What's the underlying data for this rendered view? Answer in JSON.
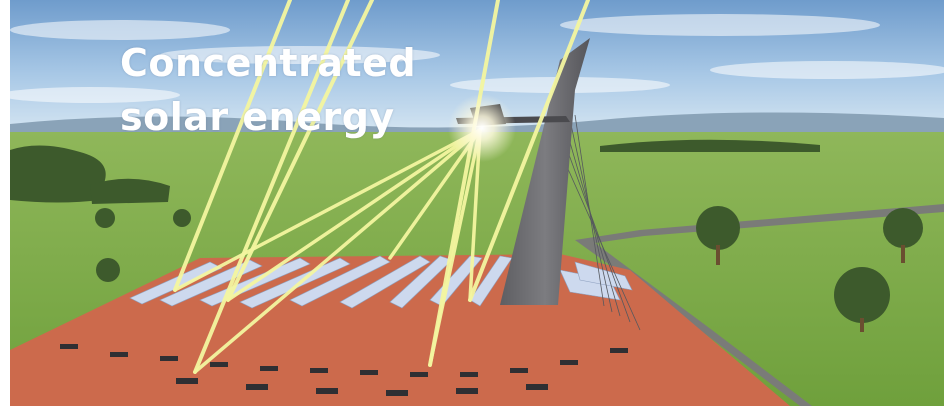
{
  "caption": {
    "line1": "Concentrated",
    "line2": "solar energy"
  },
  "scene": {
    "sky_color": "#9fc4e4",
    "grass_color": "#7fae4a",
    "field_color": "#cc6a4c",
    "tower_color": "#6e6e72",
    "beam_color": "#f4f6a0"
  }
}
